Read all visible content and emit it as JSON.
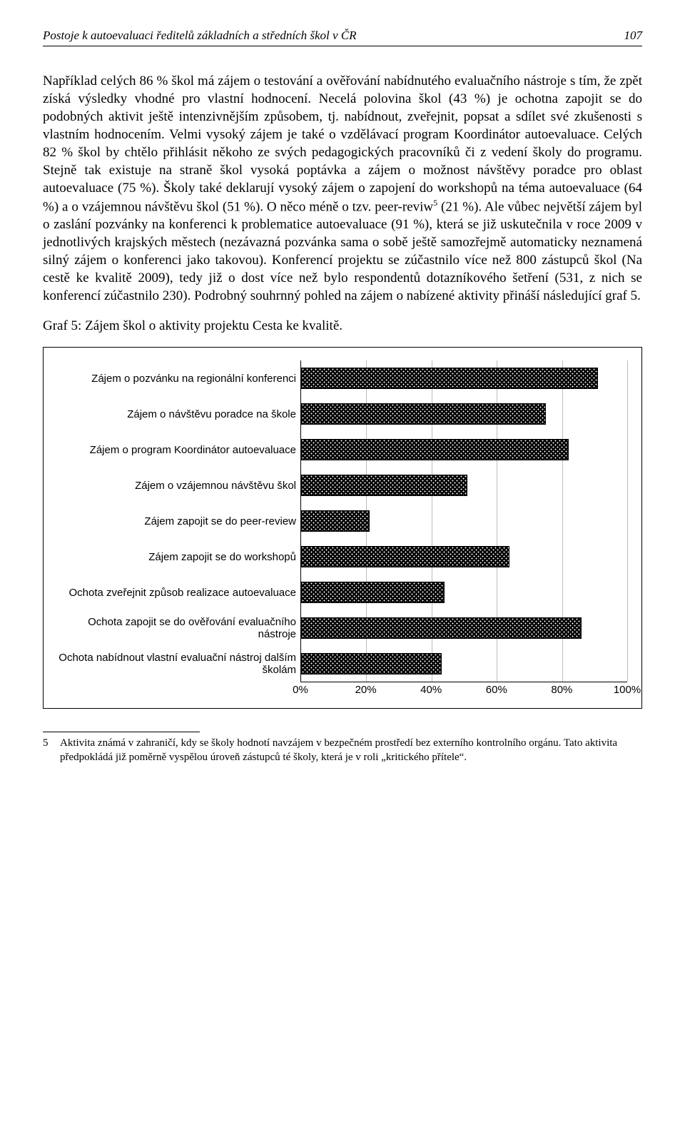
{
  "header": {
    "running_title": "Postoje k autoevaluaci ředitelů základních a středních škol v ČR",
    "page_number": "107"
  },
  "body": {
    "paragraph": "Například celých 86 % škol má zájem o testování a ověřování nabídnutého evaluačního nástroje s tím, že zpět získá výsledky vhodné pro vlastní hodnocení. Necelá polovina škol (43 %) je ochotna zapojit se do podobných aktivit ještě intenzivnějším způsobem, tj. nabídnout, zveřejnit, popsat a sdílet své zkušenosti s vlastním hodnocením. Velmi vysoký zájem je také o vzdělávací program Koordinátor autoevaluace. Celých 82 % škol by chtělo přihlásit někoho ze svých pedagogických pracovníků či z vedení školy do programu. Stejně tak existuje na straně škol vysoká poptávka a zájem o možnost návštěvy poradce pro oblast autoevaluace (75 %). Školy také deklarují vysoký zájem o zapojení do workshopů na téma autoevaluace (64 %) a o vzájemnou návštěvu škol (51 %). O něco méně o tzv. peer-reviw",
    "sup": "5",
    "paragraph_cont": " (21 %). Ale vůbec největší zájem byl o zaslání pozvánky na konferenci k problematice autoevaluace (91 %), která se již uskutečnila v roce 2009 v jednotlivých krajských městech (nezávazná pozvánka sama o sobě ještě samozřejmě automaticky neznamená silný zájem o konferenci jako takovou). Konferencí projektu se zúčastnilo více než 800 zástupců škol (Na cestě ke kvalitě 2009), tedy již o dost více než bylo respondentů dotazníkového šetření (531, z nich se konferencí zúčastnilo 230). Podrobný souhrnný pohled na zájem o nabízené aktivity přináší následující graf 5."
  },
  "chart": {
    "title": "Graf 5: Zájem škol o aktivity projektu Cesta ke kvalitě.",
    "type": "bar-horizontal",
    "xmin": 0,
    "xmax": 100,
    "xtick_step": 20,
    "xtick_labels": [
      "0%",
      "20%",
      "40%",
      "60%",
      "80%",
      "100%"
    ],
    "bar_fill": "#000000",
    "bar_dot": "#ffffff",
    "grid_color": "#bdbdbd",
    "axis_color": "#000000",
    "label_fontsize": 15,
    "items": [
      {
        "label": "Zájem o pozvánku na regionální konferenci",
        "value": 91
      },
      {
        "label": "Zájem o návštěvu poradce na škole",
        "value": 75
      },
      {
        "label": "Zájem o program Koordinátor autoevaluace",
        "value": 82
      },
      {
        "label": "Zájem o vzájemnou návštěvu škol",
        "value": 51
      },
      {
        "label": "Zájem zapojit se do peer-review",
        "value": 21
      },
      {
        "label": "Zájem zapojit se do workshopů",
        "value": 64
      },
      {
        "label": "Ochota zveřejnit způsob realizace autoevaluace",
        "value": 44
      },
      {
        "label": "Ochota zapojit se do ověřování evaluačního nástroje",
        "value": 86
      },
      {
        "label": "Ochota nabídnout vlastní evaluační nástroj dalším školám",
        "value": 43
      }
    ]
  },
  "footnote": {
    "num": "5",
    "text": "Aktivita známá v zahraničí, kdy se školy hodnotí navzájem v bezpečném prostředí bez externího kontrolního orgánu. Tato aktivita předpokládá již poměrně vyspělou úroveň zástupců té školy, která je v roli „kritického přítele“."
  }
}
